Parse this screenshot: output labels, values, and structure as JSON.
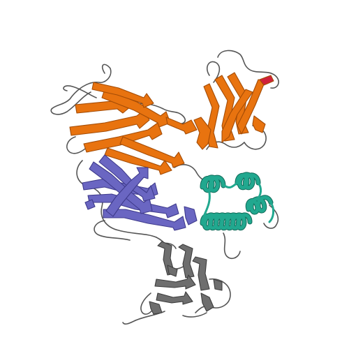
{
  "image": {
    "subject": "protein-ribbon-structure",
    "background": "#ffffff"
  },
  "colors": {
    "orange_domain": "#e8730f",
    "orange_dark": "#a44c06",
    "purple_domain": "#6a66c2",
    "purple_dark": "#3f3b8c",
    "teal_helices": "#21a88f",
    "teal_dark": "#106b59",
    "gray_domain": "#6e6e6e",
    "gray_dark": "#3d3d3d",
    "coil": "#555555",
    "accent_red": "#d0203a"
  }
}
